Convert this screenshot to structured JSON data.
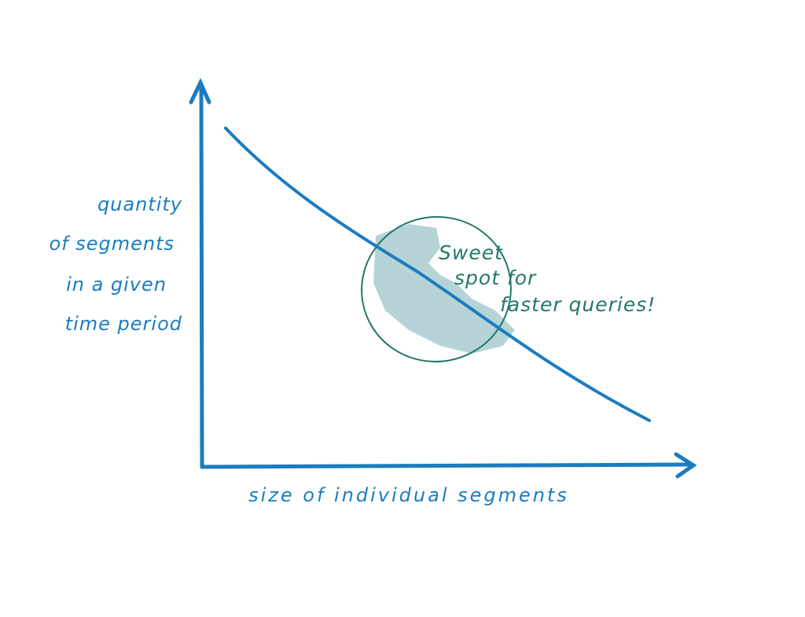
{
  "y_axis_label": {
    "lines": [
      "quantity",
      "of segments",
      "in a given",
      "time period"
    ]
  },
  "x_axis_label": "size of individual segments",
  "annotation": {
    "lines": [
      "Sweet",
      "spot for",
      "faster queries!"
    ]
  }
}
